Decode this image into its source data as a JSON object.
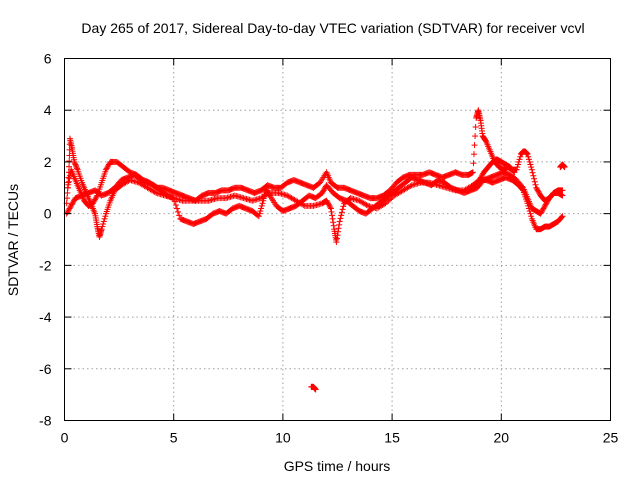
{
  "chart_data": {
    "type": "scatter",
    "title": "Day 265 of 2017, Sidereal Day-to-day VTEC variation (SDTVAR) for receiver vcvl",
    "xlabel": "GPS time / hours",
    "ylabel": "SDTVAR / TECUs",
    "xlim": [
      0,
      25
    ],
    "ylim": [
      -8,
      6
    ],
    "xticks": [
      0,
      5,
      10,
      15,
      20,
      25
    ],
    "yticks": [
      -8,
      -6,
      -4,
      -2,
      0,
      2,
      4,
      6
    ],
    "grid": true,
    "marker": "+",
    "series": [
      {
        "name": "SDTVAR",
        "color": "#ff0000",
        "traces": [
          [
            [
              0.1,
              0.4
            ],
            [
              0.2,
              1.6
            ],
            [
              0.25,
              2.9
            ],
            [
              0.35,
              2.5
            ],
            [
              0.45,
              2.0
            ],
            [
              0.6,
              1.7
            ],
            [
              0.8,
              1.2
            ],
            [
              1.0,
              0.8
            ],
            [
              1.2,
              0.4
            ],
            [
              1.4,
              0.0
            ],
            [
              1.5,
              -0.5
            ],
            [
              1.6,
              -0.9
            ],
            [
              1.7,
              -0.6
            ],
            [
              1.9,
              0.0
            ],
            [
              2.1,
              0.5
            ],
            [
              2.3,
              0.9
            ],
            [
              2.6,
              1.1
            ],
            [
              3.0,
              1.3
            ],
            [
              3.4,
              1.2
            ],
            [
              3.8,
              1.0
            ],
            [
              4.2,
              0.8
            ],
            [
              4.6,
              0.7
            ],
            [
              5.0,
              0.6
            ],
            [
              5.4,
              0.5
            ],
            [
              5.8,
              0.5
            ],
            [
              6.2,
              0.5
            ],
            [
              6.6,
              0.5
            ],
            [
              7.0,
              0.6
            ],
            [
              7.4,
              0.6
            ],
            [
              7.8,
              0.7
            ],
            [
              8.2,
              0.6
            ],
            [
              8.6,
              0.5
            ],
            [
              9.0,
              0.6
            ],
            [
              9.4,
              0.8
            ],
            [
              9.8,
              0.8
            ],
            [
              10.2,
              0.7
            ],
            [
              10.6,
              0.5
            ],
            [
              11.0,
              0.3
            ],
            [
              11.4,
              0.3
            ],
            [
              11.8,
              0.4
            ],
            [
              12.0,
              0.5
            ],
            [
              12.2,
              0.2
            ],
            [
              12.35,
              -0.6
            ],
            [
              12.45,
              -1.1
            ],
            [
              12.6,
              -0.3
            ],
            [
              12.8,
              0.4
            ],
            [
              13.1,
              0.6
            ],
            [
              13.5,
              0.5
            ],
            [
              13.9,
              0.3
            ],
            [
              14.3,
              0.2
            ],
            [
              14.7,
              0.4
            ],
            [
              15.1,
              0.7
            ],
            [
              15.5,
              0.9
            ],
            [
              15.9,
              1.1
            ],
            [
              16.3,
              1.2
            ],
            [
              16.7,
              1.2
            ],
            [
              17.1,
              1.1
            ],
            [
              17.5,
              1.0
            ],
            [
              17.9,
              0.9
            ],
            [
              18.3,
              0.9
            ],
            [
              18.7,
              1.1
            ],
            [
              19.0,
              1.3
            ],
            [
              19.3,
              1.3
            ],
            [
              19.6,
              1.2
            ],
            [
              19.9,
              1.3
            ],
            [
              20.2,
              1.4
            ],
            [
              20.5,
              1.3
            ],
            [
              20.8,
              1.1
            ],
            [
              21.0,
              0.9
            ],
            [
              21.2,
              0.4
            ],
            [
              21.4,
              -0.2
            ],
            [
              21.6,
              -0.6
            ],
            [
              21.8,
              -0.6
            ],
            [
              22.0,
              -0.5
            ],
            [
              22.2,
              -0.5
            ],
            [
              22.4,
              -0.4
            ],
            [
              22.6,
              -0.3
            ],
            [
              22.8,
              -0.1
            ]
          ],
          [
            [
              0.15,
              1.0
            ],
            [
              0.3,
              1.7
            ],
            [
              0.5,
              1.3
            ],
            [
              0.7,
              0.9
            ],
            [
              0.9,
              0.5
            ],
            [
              1.1,
              0.3
            ],
            [
              1.3,
              0.4
            ],
            [
              1.5,
              0.7
            ],
            [
              1.7,
              1.2
            ],
            [
              1.9,
              1.7
            ],
            [
              2.1,
              2.0
            ],
            [
              2.4,
              2.0
            ],
            [
              2.7,
              1.8
            ],
            [
              3.0,
              1.6
            ],
            [
              3.3,
              1.5
            ],
            [
              3.6,
              1.3
            ],
            [
              3.9,
              1.2
            ],
            [
              4.2,
              1.0
            ],
            [
              4.5,
              1.0
            ],
            [
              4.8,
              0.9
            ],
            [
              5.1,
              0.8
            ],
            [
              5.4,
              0.7
            ],
            [
              5.7,
              0.6
            ],
            [
              6.0,
              0.5
            ],
            [
              6.3,
              0.7
            ],
            [
              6.6,
              0.8
            ],
            [
              6.9,
              0.8
            ],
            [
              7.2,
              0.9
            ],
            [
              7.5,
              0.9
            ],
            [
              7.8,
              1.0
            ],
            [
              8.1,
              1.0
            ],
            [
              8.4,
              0.9
            ],
            [
              8.7,
              0.8
            ],
            [
              9.0,
              0.9
            ],
            [
              9.3,
              1.1
            ],
            [
              9.6,
              1.0
            ],
            [
              9.9,
              1.0
            ],
            [
              10.2,
              1.2
            ],
            [
              10.5,
              1.3
            ],
            [
              10.8,
              1.2
            ],
            [
              11.1,
              1.1
            ],
            [
              11.4,
              1.0
            ],
            [
              11.7,
              1.2
            ],
            [
              12.0,
              1.6
            ],
            [
              12.2,
              1.2
            ],
            [
              12.5,
              1.0
            ],
            [
              12.8,
              1.0
            ],
            [
              13.1,
              0.9
            ],
            [
              13.4,
              0.8
            ],
            [
              13.7,
              0.7
            ],
            [
              14.0,
              0.6
            ],
            [
              14.3,
              0.6
            ],
            [
              14.6,
              0.7
            ],
            [
              14.9,
              0.9
            ],
            [
              15.2,
              1.2
            ],
            [
              15.5,
              1.4
            ],
            [
              15.8,
              1.5
            ],
            [
              16.1,
              1.5
            ],
            [
              16.4,
              1.5
            ],
            [
              16.7,
              1.6
            ],
            [
              17.0,
              1.5
            ],
            [
              17.3,
              1.4
            ],
            [
              17.6,
              1.5
            ],
            [
              17.9,
              1.6
            ],
            [
              18.2,
              1.5
            ],
            [
              18.5,
              1.5
            ],
            [
              18.7,
              1.6
            ],
            [
              18.85,
              3.7
            ],
            [
              18.95,
              4.0
            ],
            [
              19.05,
              3.6
            ],
            [
              19.15,
              3.0
            ],
            [
              19.3,
              2.8
            ],
            [
              19.5,
              2.4
            ],
            [
              19.7,
              2.0
            ],
            [
              19.9,
              1.8
            ],
            [
              20.1,
              1.7
            ],
            [
              20.3,
              1.8
            ],
            [
              20.5,
              1.7
            ],
            [
              20.7,
              1.7
            ],
            [
              20.9,
              2.3
            ],
            [
              21.0,
              2.4
            ],
            [
              21.1,
              2.4
            ],
            [
              21.2,
              2.3
            ],
            [
              21.4,
              1.7
            ],
            [
              21.6,
              1.0
            ],
            [
              21.8,
              0.7
            ],
            [
              22.0,
              0.5
            ],
            [
              22.2,
              0.6
            ],
            [
              22.4,
              0.8
            ],
            [
              22.6,
              0.9
            ],
            [
              22.8,
              0.9
            ]
          ],
          [
            [
              0.1,
              0.0
            ],
            [
              0.3,
              0.3
            ],
            [
              0.5,
              0.6
            ],
            [
              0.8,
              0.7
            ],
            [
              1.1,
              0.8
            ],
            [
              1.4,
              0.9
            ],
            [
              1.7,
              0.7
            ],
            [
              2.0,
              0.8
            ],
            [
              2.3,
              1.0
            ],
            [
              2.6,
              1.3
            ],
            [
              2.9,
              1.4
            ],
            [
              3.2,
              1.5
            ],
            [
              3.5,
              1.3
            ],
            [
              3.8,
              1.2
            ],
            [
              4.1,
              1.1
            ],
            [
              4.4,
              0.9
            ],
            [
              4.7,
              0.7
            ],
            [
              5.0,
              0.6
            ],
            [
              5.3,
              -0.2
            ],
            [
              5.6,
              -0.3
            ],
            [
              5.9,
              -0.4
            ],
            [
              6.2,
              -0.3
            ],
            [
              6.5,
              -0.2
            ],
            [
              6.8,
              0.0
            ],
            [
              7.1,
              0.1
            ],
            [
              7.4,
              0.0
            ],
            [
              7.7,
              0.2
            ],
            [
              8.0,
              0.3
            ],
            [
              8.3,
              0.2
            ],
            [
              8.6,
              0.1
            ],
            [
              8.9,
              -0.1
            ],
            [
              9.1,
              0.5
            ],
            [
              9.2,
              1.0
            ],
            [
              9.4,
              0.7
            ],
            [
              9.7,
              0.3
            ],
            [
              10.0,
              0.1
            ],
            [
              10.3,
              0.2
            ],
            [
              10.6,
              0.3
            ],
            [
              10.9,
              0.5
            ],
            [
              11.2,
              0.7
            ],
            [
              11.5,
              0.6
            ],
            [
              11.8,
              0.8
            ],
            [
              12.0,
              1.1
            ],
            [
              12.3,
              0.8
            ],
            [
              12.6,
              0.6
            ],
            [
              12.9,
              0.5
            ],
            [
              13.2,
              0.3
            ],
            [
              13.5,
              0.1
            ],
            [
              13.8,
              0.0
            ],
            [
              14.1,
              0.2
            ],
            [
              14.4,
              0.4
            ],
            [
              14.7,
              0.6
            ],
            [
              15.0,
              0.8
            ],
            [
              15.3,
              1.0
            ],
            [
              15.6,
              1.2
            ],
            [
              15.9,
              1.4
            ],
            [
              16.2,
              1.3
            ],
            [
              16.5,
              1.2
            ],
            [
              16.8,
              1.1
            ],
            [
              17.1,
              1.3
            ],
            [
              17.4,
              1.2
            ],
            [
              17.7,
              1.0
            ],
            [
              18.0,
              0.9
            ],
            [
              18.3,
              0.8
            ],
            [
              18.6,
              0.9
            ],
            [
              18.9,
              1.0
            ],
            [
              19.2,
              1.3
            ],
            [
              19.5,
              1.4
            ],
            [
              19.8,
              1.5
            ],
            [
              20.1,
              1.6
            ],
            [
              20.4,
              1.5
            ],
            [
              20.7,
              1.3
            ],
            [
              21.0,
              1.0
            ],
            [
              21.2,
              0.6
            ],
            [
              21.4,
              0.2
            ],
            [
              21.6,
              0.1
            ],
            [
              21.8,
              0.0
            ],
            [
              22.0,
              0.3
            ],
            [
              22.2,
              0.6
            ],
            [
              22.4,
              0.8
            ],
            [
              22.6,
              0.8
            ],
            [
              22.8,
              0.7
            ]
          ],
          [
            [
              18.8,
              1.0
            ],
            [
              19.0,
              1.3
            ],
            [
              19.2,
              1.6
            ],
            [
              19.4,
              1.8
            ],
            [
              19.6,
              2.0
            ],
            [
              19.8,
              2.1
            ],
            [
              20.0,
              2.0
            ],
            [
              20.2,
              1.9
            ],
            [
              20.4,
              1.8
            ],
            [
              20.6,
              1.6
            ]
          ],
          [
            [
              22.7,
              1.8
            ],
            [
              22.8,
              1.9
            ],
            [
              22.9,
              1.8
            ]
          ],
          [
            [
              11.3,
              -6.7
            ],
            [
              11.4,
              -6.7
            ],
            [
              11.5,
              -6.8
            ]
          ]
        ]
      }
    ]
  }
}
